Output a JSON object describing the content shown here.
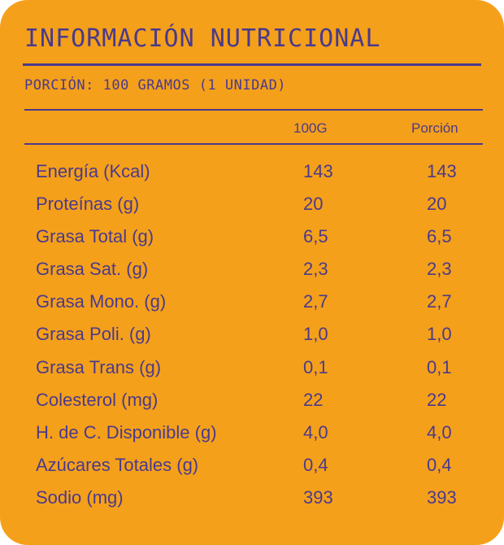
{
  "title": "INFORMACIÓN NUTRICIONAL",
  "portion": "PORCIÓN: 100 GRAMOS (1 UNIDAD)",
  "columns": {
    "per100": "100G",
    "portion": "Porción"
  },
  "rows": [
    {
      "label": "Energía (Kcal)",
      "per100": "143",
      "portion": "143"
    },
    {
      "label": "Proteínas (g)",
      "per100": "20",
      "portion": "20"
    },
    {
      "label": "Grasa Total (g)",
      "per100": "6,5",
      "portion": "6,5"
    },
    {
      "label": "Grasa Sat. (g)",
      "per100": "2,3",
      "portion": "2,3"
    },
    {
      "label": "Grasa Mono. (g)",
      "per100": "2,7",
      "portion": "2,7"
    },
    {
      "label": "Grasa Poli. (g)",
      "per100": "1,0",
      "portion": "1,0"
    },
    {
      "label": "Grasa Trans (g)",
      "per100": "0,1",
      "portion": "0,1"
    },
    {
      "label": "Colesterol (mg)",
      "per100": "22",
      "portion": "22"
    },
    {
      "label": "H. de C. Disponible (g)",
      "per100": "4,0",
      "portion": "4,0"
    },
    {
      "label": "Azúcares Totales (g)",
      "per100": "0,4",
      "portion": "0,4"
    },
    {
      "label": "Sodio (mg)",
      "per100": "393",
      "portion": "393"
    }
  ],
  "colors": {
    "background": "#F5A01A",
    "text": "#4A3A8C"
  }
}
